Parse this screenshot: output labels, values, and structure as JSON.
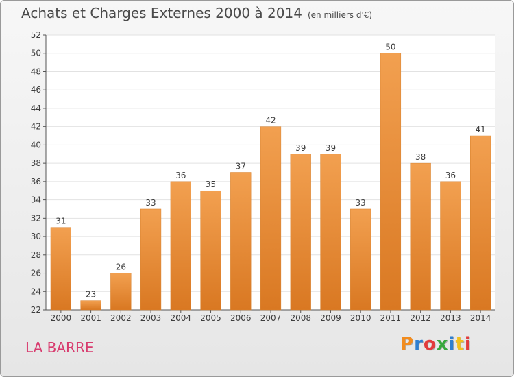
{
  "header": {
    "title": "Achats et Charges Externes 2000 à 2014",
    "subtitle": "(en milliers d'€)"
  },
  "footer": {
    "place": "LA BARRE",
    "brand": "Proxiti",
    "brand_colors": [
      "#f28c1e",
      "#2f7fd0",
      "#e23b3b",
      "#37a83c",
      "#2f7fd0",
      "#f2c01e",
      "#e23b3b"
    ]
  },
  "chart_data": {
    "type": "bar",
    "categories": [
      "2000",
      "2001",
      "2002",
      "2003",
      "2004",
      "2005",
      "2006",
      "2007",
      "2008",
      "2009",
      "2010",
      "2011",
      "2012",
      "2013",
      "2014"
    ],
    "values": [
      31,
      23,
      26,
      33,
      36,
      35,
      37,
      42,
      39,
      39,
      33,
      50,
      38,
      36,
      41
    ],
    "ylim": [
      22,
      52
    ],
    "ytick_step": 2,
    "grid": true,
    "bar_color": "#f2a050",
    "bar_color_bottom": "#d97822"
  }
}
